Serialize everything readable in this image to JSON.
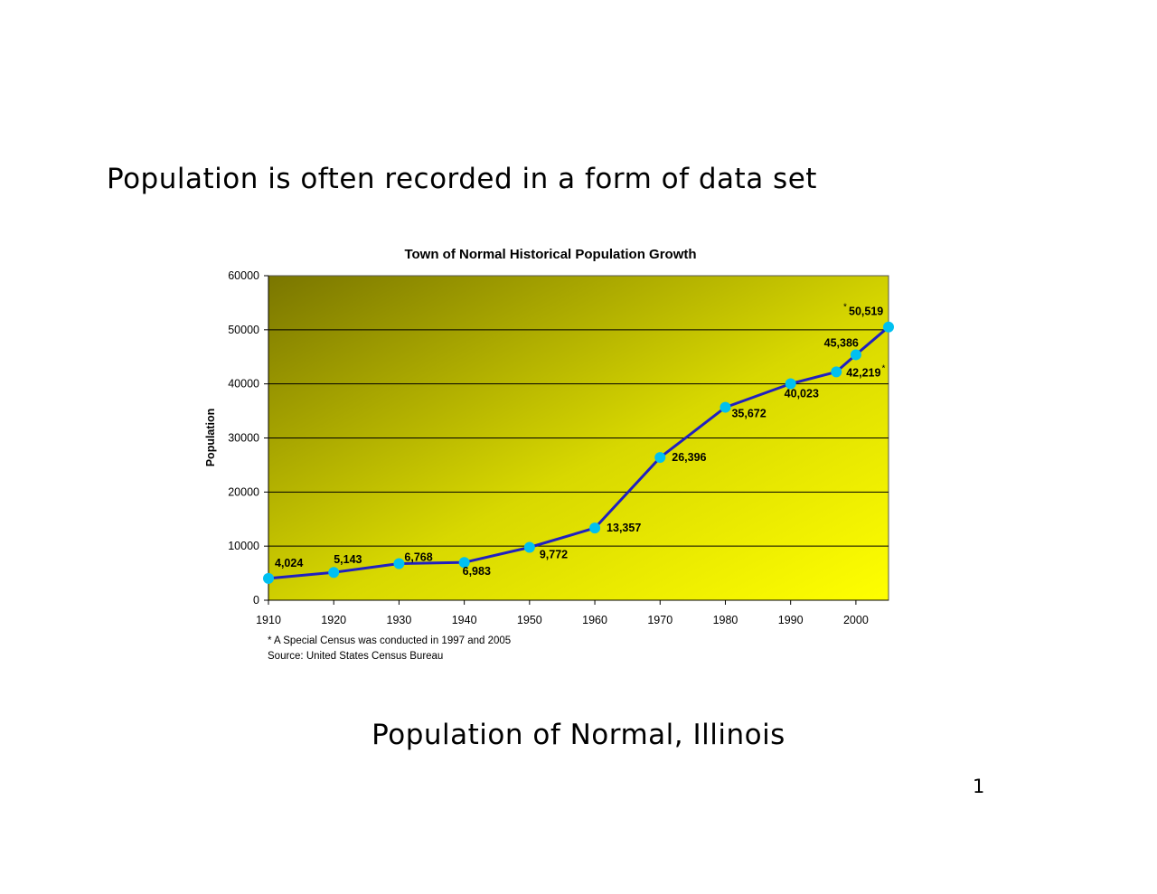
{
  "slide": {
    "heading": "Population is often recorded in a form of data set",
    "caption": "Population of Normal, Illinois",
    "page_number": "1"
  },
  "chart_data": {
    "type": "line",
    "title": "Town of Normal Historical Population Growth",
    "xlabel": "",
    "ylabel": "Population",
    "xlim": [
      1910,
      2005
    ],
    "ylim": [
      0,
      60000
    ],
    "x_ticks": [
      "1910",
      "1920",
      "1930",
      "1940",
      "1950",
      "1960",
      "1970",
      "1980",
      "1990",
      "2000"
    ],
    "y_ticks": [
      "0",
      "10000",
      "20000",
      "30000",
      "40000",
      "50000",
      "60000"
    ],
    "grid": true,
    "legend": "none",
    "series": [
      {
        "points": [
          {
            "x": 1910,
            "y": 4024,
            "label": "4,024"
          },
          {
            "x": 1920,
            "y": 5143,
            "label": "5,143"
          },
          {
            "x": 1930,
            "y": 6768,
            "label": "6,768"
          },
          {
            "x": 1940,
            "y": 6983,
            "label": "6,983"
          },
          {
            "x": 1950,
            "y": 9772,
            "label": "9,772"
          },
          {
            "x": 1960,
            "y": 13357,
            "label": "13,357"
          },
          {
            "x": 1970,
            "y": 26396,
            "label": "26,396"
          },
          {
            "x": 1980,
            "y": 35672,
            "label": "35,672"
          },
          {
            "x": 1990,
            "y": 40023,
            "label": "40,023"
          },
          {
            "x": 1997,
            "y": 42219,
            "label": "42,219",
            "star": "*"
          },
          {
            "x": 2000,
            "y": 45386,
            "label": "45,386"
          },
          {
            "x": 2005,
            "y": 50519,
            "label": "50,519",
            "star": "*"
          }
        ]
      }
    ],
    "footnotes": [
      "* A Special Census was conducted in 1997 and 2005",
      "Source: United States Census Bureau"
    ],
    "colors": {
      "line": "#2020c0",
      "marker": "#00c0f0",
      "gradient_dark": "#7a7600",
      "gradient_light": "#ffff00",
      "gridline": "#000000"
    }
  }
}
